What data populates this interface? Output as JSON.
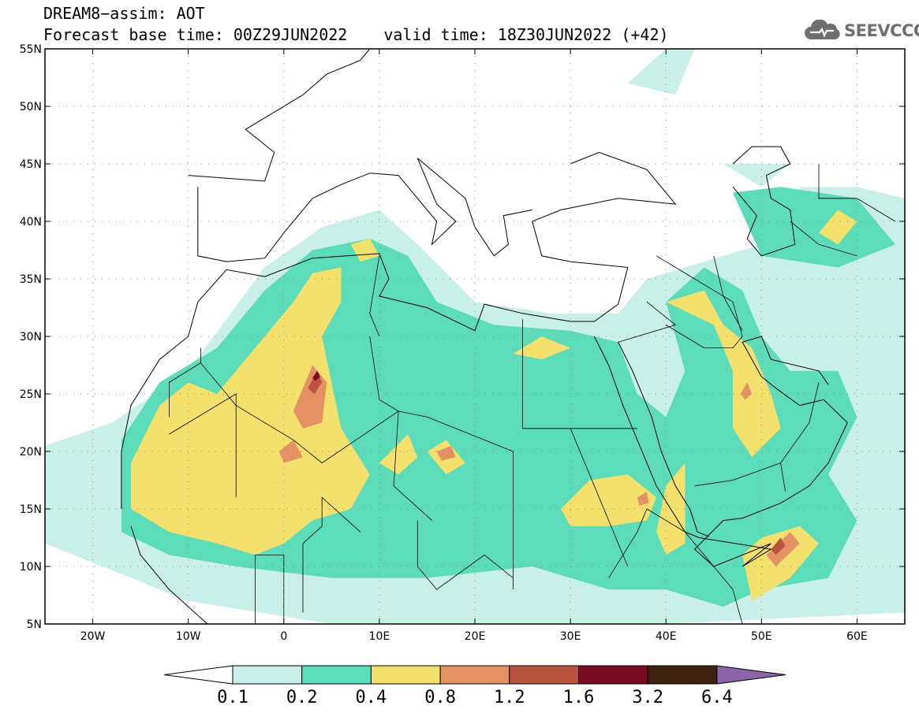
{
  "header": {
    "line1": "DREAM8−assim: AOT",
    "base_time": "Forecast base time: 00Z29JUN2022",
    "valid_time": "valid time: 18Z30JUN2022 (+42)"
  },
  "logo": {
    "text": "SEEVCCC",
    "icon": "cloud-icon"
  },
  "map": {
    "lon_range": [
      -25,
      65
    ],
    "lat_range": [
      5,
      55
    ],
    "lat_ticks": [
      {
        "lat": 55,
        "label": "55N"
      },
      {
        "lat": 50,
        "label": "50N"
      },
      {
        "lat": 45,
        "label": "45N"
      },
      {
        "lat": 40,
        "label": "40N"
      },
      {
        "lat": 35,
        "label": "35N"
      },
      {
        "lat": 30,
        "label": "30N"
      },
      {
        "lat": 25,
        "label": "25N"
      },
      {
        "lat": 20,
        "label": "20N"
      },
      {
        "lat": 15,
        "label": "15N"
      },
      {
        "lat": 10,
        "label": "10N"
      },
      {
        "lat": 5,
        "label": "5N"
      }
    ],
    "lon_ticks": [
      {
        "lon": -20,
        "label": "20W"
      },
      {
        "lon": -10,
        "label": "10W"
      },
      {
        "lon": 0,
        "label": "0"
      },
      {
        "lon": 10,
        "label": "10E"
      },
      {
        "lon": 20,
        "label": "20E"
      },
      {
        "lon": 30,
        "label": "30E"
      },
      {
        "lon": 40,
        "label": "40E"
      },
      {
        "lon": 50,
        "label": "50E"
      },
      {
        "lon": 60,
        "label": "60E"
      }
    ],
    "gridlines": "dotted"
  },
  "colorbar": {
    "labels": [
      "0.1",
      "0.2",
      "0.4",
      "0.8",
      "1.2",
      "1.6",
      "3.2",
      "6.4"
    ],
    "colors": [
      "#c8f0e8",
      "#5cdcb8",
      "#f4e06c",
      "#e49264",
      "#b85440",
      "#7c0c24",
      "#3c2010"
    ],
    "under_color": "#ffffff",
    "over_color": "#8c64a8"
  },
  "palette": {
    "c01": "#c8f0e8",
    "c02": "#5cdcb8",
    "c04": "#f4e06c",
    "c08": "#e49264",
    "c12": "#b85440",
    "c16": "#7c0c24"
  }
}
